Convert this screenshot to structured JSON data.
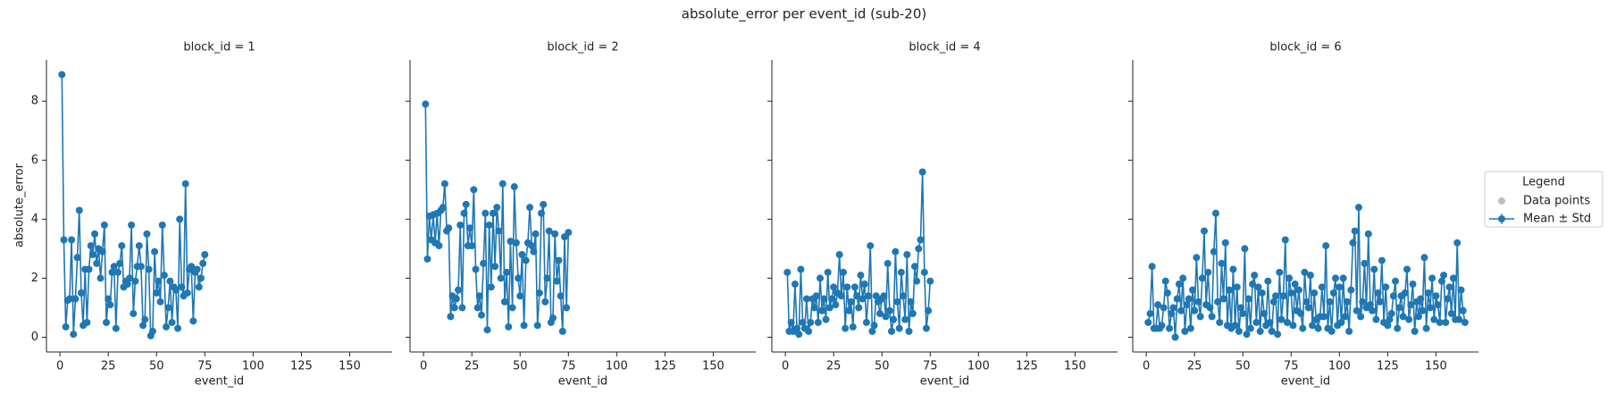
{
  "title": "absolute_error per event_id (sub-20)",
  "legend": {
    "title": "Legend",
    "entries": [
      {
        "name": "Data points",
        "color": "#bfbfbf"
      },
      {
        "name": "Mean ± Std",
        "color": "#1f77b4"
      }
    ]
  },
  "chart_data": [
    {
      "type": "line",
      "title": "block_id = 1",
      "xlabel": "event_id",
      "ylabel": "absolute_error",
      "x": [
        1,
        2,
        3,
        4,
        5,
        6,
        7,
        8,
        9,
        10,
        11,
        12,
        13,
        14,
        15,
        16,
        17,
        18,
        19,
        20,
        21,
        22,
        23,
        24,
        25,
        26,
        27,
        28,
        29,
        30,
        31,
        32,
        33,
        34,
        35,
        36,
        37,
        38,
        39,
        40,
        41,
        42,
        43,
        44,
        45,
        46,
        47,
        48,
        49,
        50,
        51,
        52,
        53,
        54,
        55,
        56,
        57,
        58,
        59,
        60,
        61,
        62,
        63,
        64,
        65,
        66,
        67,
        68,
        69,
        70,
        71,
        72,
        73,
        74,
        75
      ],
      "series": [
        {
          "color": "#1f77b4",
          "values": [
            8.9,
            3.3,
            0.35,
            1.25,
            1.3,
            3.3,
            0.1,
            1.3,
            2.7,
            4.3,
            1.5,
            0.4,
            2.3,
            0.5,
            2.3,
            3.1,
            2.8,
            3.5,
            2.5,
            3.0,
            2.0,
            2.9,
            3.8,
            0.5,
            1.3,
            1.1,
            2.2,
            2.4,
            0.3,
            2.2,
            2.5,
            3.1,
            1.7,
            1.9,
            1.8,
            2.0,
            3.8,
            0.8,
            1.9,
            2.4,
            3.1,
            2.4,
            0.4,
            0.6,
            3.5,
            2.3,
            0.05,
            0.2,
            2.9,
            1.5,
            1.9,
            1.2,
            3.8,
            2.1,
            0.35,
            1.0,
            1.9,
            0.5,
            1.7,
            1.6,
            0.3,
            4.0,
            1.7,
            1.4,
            5.2,
            1.5,
            2.3,
            2.4,
            0.55,
            2.2,
            2.3,
            1.7,
            2.0,
            2.5,
            2.8
          ]
        }
      ],
      "xlim": [
        -7,
        172
      ],
      "ylim": [
        -0.5,
        9.4
      ],
      "xticks": [
        0,
        25,
        50,
        75,
        100,
        125,
        150
      ],
      "yticks": [
        0,
        2,
        4,
        6,
        8
      ]
    },
    {
      "type": "line",
      "title": "block_id = 2",
      "xlabel": "event_id",
      "x": [
        1,
        2,
        3,
        4,
        5,
        6,
        7,
        8,
        9,
        10,
        11,
        12,
        13,
        14,
        15,
        16,
        17,
        18,
        19,
        20,
        21,
        22,
        23,
        24,
        25,
        26,
        27,
        28,
        29,
        30,
        31,
        32,
        33,
        34,
        35,
        36,
        37,
        38,
        39,
        40,
        41,
        42,
        43,
        44,
        45,
        46,
        47,
        48,
        49,
        50,
        51,
        52,
        53,
        54,
        55,
        56,
        57,
        58,
        59,
        60,
        61,
        62,
        63,
        64,
        65,
        66,
        67,
        68,
        69,
        70,
        71,
        72,
        73,
        74,
        75
      ],
      "series": [
        {
          "color": "#1f77b4",
          "values": [
            7.9,
            2.65,
            4.1,
            3.3,
            4.15,
            3.2,
            4.2,
            3.1,
            4.3,
            4.4,
            5.2,
            3.6,
            3.7,
            0.7,
            1.4,
            1.0,
            1.3,
            1.6,
            3.8,
            1.0,
            4.2,
            4.5,
            3.1,
            3.7,
            3.1,
            5.0,
            2.3,
            1.0,
            1.4,
            0.75,
            2.5,
            4.2,
            0.25,
            3.8,
            1.7,
            4.2,
            2.4,
            4.4,
            3.6,
            2.0,
            5.2,
            1.2,
            2.2,
            0.35,
            3.25,
            1.0,
            5.1,
            3.2,
            2.0,
            1.4,
            2.8,
            0.4,
            2.6,
            3.2,
            4.4,
            3.1,
            2.9,
            3.5,
            0.4,
            1.5,
            4.2,
            4.5,
            1.2,
            2.0,
            3.6,
            0.5,
            0.65,
            3.5,
            1.9,
            2.6,
            1.4,
            0.2,
            3.4,
            1.0,
            3.55
          ]
        }
      ],
      "xlim": [
        -7,
        172
      ],
      "ylim": [
        -0.5,
        9.4
      ],
      "xticks": [
        0,
        25,
        50,
        75,
        100,
        125,
        150
      ],
      "yticks": [
        0,
        2,
        4,
        6,
        8
      ]
    },
    {
      "type": "line",
      "title": "block_id = 4",
      "xlabel": "event_id",
      "x": [
        1,
        2,
        3,
        4,
        5,
        6,
        7,
        8,
        9,
        10,
        11,
        12,
        13,
        14,
        15,
        16,
        17,
        18,
        19,
        20,
        21,
        22,
        23,
        24,
        25,
        26,
        27,
        28,
        29,
        30,
        31,
        32,
        33,
        34,
        35,
        36,
        37,
        38,
        39,
        40,
        41,
        42,
        43,
        44,
        45,
        46,
        47,
        48,
        49,
        50,
        51,
        52,
        53,
        54,
        55,
        56,
        57,
        58,
        59,
        60,
        61,
        62,
        63,
        64,
        65,
        66,
        67,
        68,
        69,
        70,
        71,
        72,
        73,
        74,
        75
      ],
      "series": [
        {
          "color": "#1f77b4",
          "values": [
            2.2,
            0.2,
            0.5,
            0.2,
            1.8,
            0.3,
            0.1,
            2.3,
            0.5,
            0.3,
            1.3,
            0.2,
            0.5,
            1.3,
            1.0,
            1.4,
            0.5,
            2.0,
            0.9,
            1.3,
            0.6,
            2.2,
            1.0,
            1.3,
            1.7,
            1.1,
            1.5,
            2.8,
            1.4,
            2.2,
            0.3,
            1.7,
            0.9,
            1.2,
            0.35,
            1.7,
            1.4,
            1.0,
            2.1,
            1.3,
            1.8,
            0.5,
            1.4,
            3.1,
            0.2,
            0.4,
            1.4,
            1.2,
            0.8,
            1.3,
            1.4,
            0.7,
            2.5,
            0.9,
            0.2,
            0.6,
            2.9,
            1.2,
            0.3,
            2.2,
            1.4,
            0.6,
            2.8,
            0.2,
            1.2,
            0.8,
            2.4,
            1.9,
            3.0,
            3.3,
            5.6,
            2.2,
            0.3,
            0.9,
            1.9
          ]
        }
      ],
      "xlim": [
        -7,
        172
      ],
      "ylim": [
        -0.5,
        9.4
      ],
      "xticks": [
        0,
        25,
        50,
        75,
        100,
        125,
        150
      ],
      "yticks": [
        0,
        2,
        4,
        6,
        8
      ]
    },
    {
      "type": "line",
      "title": "block_id = 6",
      "xlabel": "event_id",
      "x": [
        1,
        2,
        3,
        4,
        5,
        6,
        7,
        8,
        9,
        10,
        11,
        12,
        13,
        14,
        15,
        16,
        17,
        18,
        19,
        20,
        21,
        22,
        23,
        24,
        25,
        26,
        27,
        28,
        29,
        30,
        31,
        32,
        33,
        34,
        35,
        36,
        37,
        38,
        39,
        40,
        41,
        42,
        43,
        44,
        45,
        46,
        47,
        48,
        49,
        50,
        51,
        52,
        53,
        54,
        55,
        56,
        57,
        58,
        59,
        60,
        61,
        62,
        63,
        64,
        65,
        66,
        67,
        68,
        69,
        70,
        71,
        72,
        73,
        74,
        75,
        76,
        77,
        78,
        79,
        80,
        81,
        82,
        83,
        84,
        85,
        86,
        87,
        88,
        89,
        90,
        91,
        92,
        93,
        94,
        95,
        96,
        97,
        98,
        99,
        100,
        101,
        102,
        103,
        104,
        105,
        106,
        107,
        108,
        109,
        110,
        111,
        112,
        113,
        114,
        115,
        116,
        117,
        118,
        119,
        120,
        121,
        122,
        123,
        124,
        125,
        126,
        127,
        128,
        129,
        130,
        131,
        132,
        133,
        134,
        135,
        136,
        137,
        138,
        139,
        140,
        141,
        142,
        143,
        144,
        145,
        146,
        147,
        148,
        149,
        150,
        151,
        152,
        153,
        154,
        155,
        156,
        157,
        158,
        159,
        160,
        161,
        162,
        163,
        164,
        165
      ],
      "series": [
        {
          "color": "#1f77b4",
          "values": [
            0.5,
            0.8,
            2.4,
            0.3,
            0.3,
            1.1,
            0.3,
            0.4,
            1.0,
            1.9,
            1.5,
            0.3,
            0.8,
            1.0,
            0.0,
            1.3,
            1.8,
            0.9,
            2.0,
            0.2,
            1.1,
            1.3,
            0.3,
            1.6,
            0.9,
            2.7,
            1.2,
            0.7,
            2.0,
            3.6,
            1.1,
            2.2,
            1.0,
            0.7,
            2.9,
            4.2,
            1.2,
            0.5,
            2.5,
            1.3,
            3.2,
            0.4,
            1.6,
            0.3,
            2.3,
            0.4,
            1.7,
            0.2,
            1.0,
            0.8,
            3.0,
            0.1,
            1.3,
            0.3,
            1.8,
            2.1,
            0.5,
            1.7,
            0.2,
            1.5,
            0.8,
            0.4,
            1.9,
            0.5,
            0.2,
            1.2,
            1.4,
            0.1,
            2.2,
            0.6,
            1.4,
            3.3,
            0.5,
            2.0,
            1.5,
            0.4,
            1.8,
            0.9,
            1.6,
            0.8,
            0.3,
            2.2,
            1.2,
            1.0,
            2.1,
            0.4,
            1.5,
            0.6,
            0.3,
            0.7,
            1.7,
            0.7,
            3.1,
            0.3,
            1.2,
            0.2,
            1.5,
            2.0,
            0.4,
            1.7,
            0.5,
            2.0,
            0.7,
            1.2,
            0.2,
            1.6,
            3.2,
            3.6,
            0.9,
            4.4,
            0.7,
            1.2,
            2.5,
            1.0,
            3.5,
            1.1,
            0.9,
            2.3,
            0.6,
            1.5,
            1.2,
            2.6,
            0.5,
            1.7,
            0.4,
            0.6,
            0.8,
            1.4,
            1.9,
            0.3,
            1.0,
            1.4,
            0.7,
            1.5,
            2.3,
            0.6,
            1.1,
            1.8,
            0.2,
            1.2,
            0.7,
            1.3,
            0.9,
            2.7,
            0.3,
            1.5,
            1.0,
            2.0,
            0.6,
            1.4,
            1.1,
            0.5,
            1.9,
            2.1,
            0.5,
            1.3,
            1.7,
            0.8,
            2.0,
            0.6,
            3.2,
            0.6,
            1.6,
            0.9,
            0.5
          ]
        }
      ],
      "xlim": [
        -7,
        172
      ],
      "ylim": [
        -0.5,
        9.4
      ],
      "xticks": [
        0,
        25,
        50,
        75,
        100,
        125,
        150
      ],
      "yticks": [
        0,
        2,
        4,
        6,
        8
      ]
    }
  ]
}
